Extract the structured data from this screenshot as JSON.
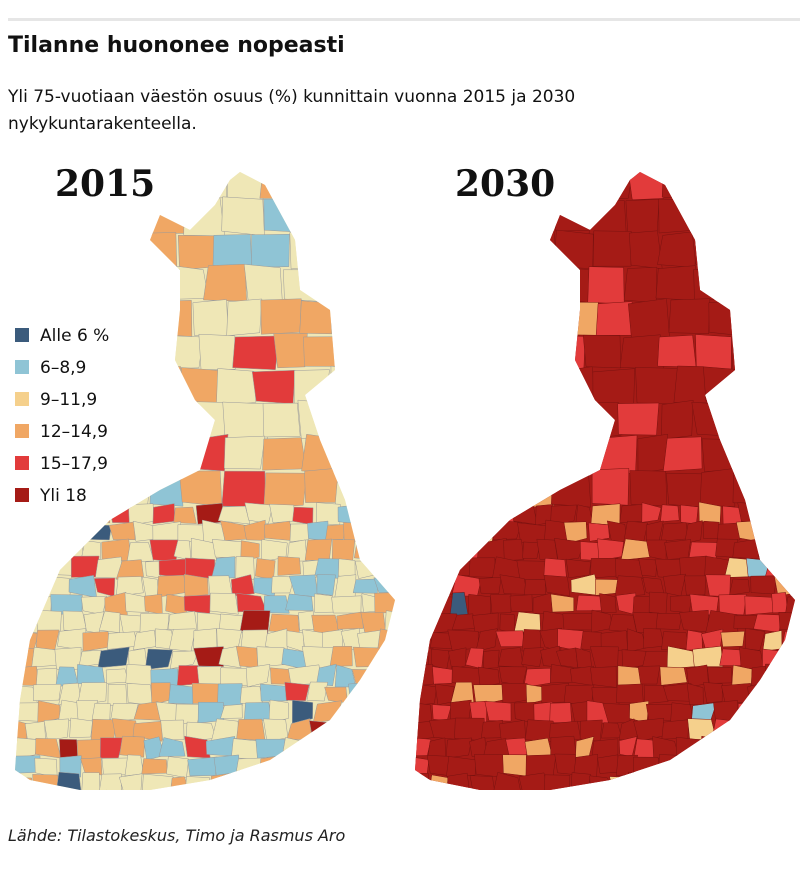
{
  "header": {
    "title": "Tilanne huononee nopeasti",
    "subtitle": "Yli 75-vuotiaan väestön osuus (%) kunnittain vuonna 2015 ja 2030 nykykuntarakenteella."
  },
  "maps": [
    {
      "year": "2015"
    },
    {
      "year": "2030"
    }
  ],
  "legend": [
    {
      "label": "Alle 6 %",
      "color": "#3b5b7c"
    },
    {
      "label": "6–8,9",
      "color": "#8fc4d5"
    },
    {
      "label": "9–11,9",
      "color": "#f5d08c"
    },
    {
      "label": "12–14,9",
      "color": "#f0a764"
    },
    {
      "label": "15–17,9",
      "color": "#e23b3b"
    },
    {
      "label": "Yli 18",
      "color": "#a51b16"
    }
  ],
  "source": "Lähde: Tilastokeskus, Timo ja Rasmus Aro"
}
